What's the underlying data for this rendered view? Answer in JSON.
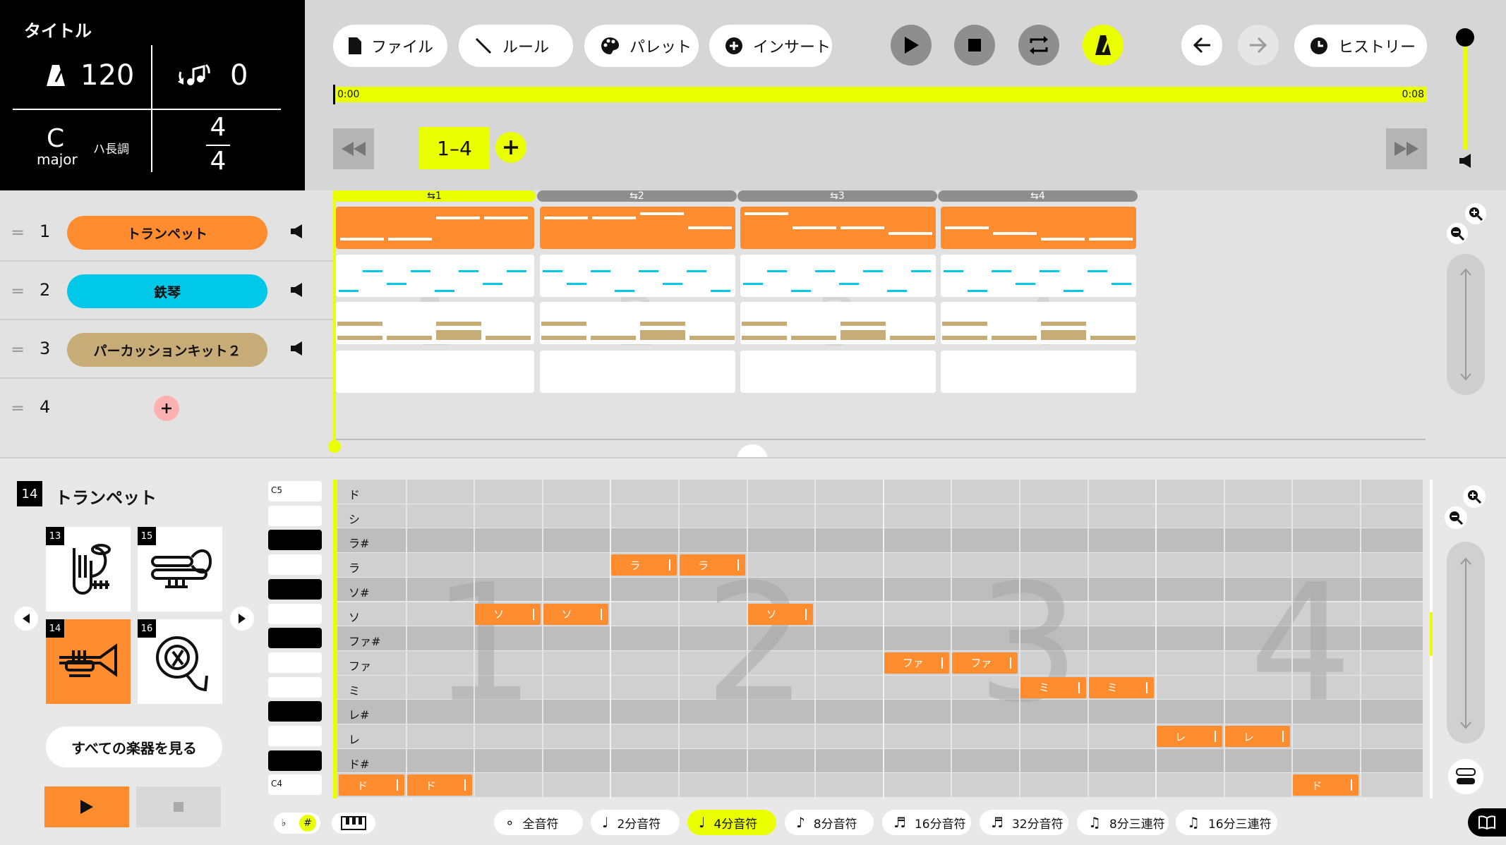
{
  "song": {
    "title": "タイトル",
    "tempo": "120",
    "transpose": "0",
    "key_note": "C",
    "key_mode": "major",
    "key_jp": "ハ長調",
    "ts_num": "4",
    "ts_den": "4"
  },
  "toolbar": {
    "file": "ファイル",
    "rule": "ルール",
    "palette": "パレット",
    "insert": "インサート",
    "history": "ヒストリー"
  },
  "timeline": {
    "start": "0:00",
    "end": "0:08"
  },
  "range": {
    "label": "1–4"
  },
  "measures": [
    "1",
    "2",
    "3",
    "4"
  ],
  "tracks": [
    {
      "num": "1",
      "name": "トランペット",
      "color": "#ff8c2e",
      "text": "#111"
    },
    {
      "num": "2",
      "name": "鉄琴",
      "color": "#00c8e8",
      "text": "#111"
    },
    {
      "num": "3",
      "name": "パーカッションキット２",
      "color": "#c8ac78",
      "text": "#111"
    },
    {
      "num": "4"
    }
  ],
  "editor": {
    "badge": "14",
    "instrument": "トランペット",
    "see_all": "すべての楽器を見る",
    "cards": [
      {
        "num": "13",
        "icon": "tuba-icon"
      },
      {
        "num": "15",
        "icon": "trombone-icon"
      },
      {
        "num": "14",
        "icon": "trumpet-icon"
      },
      {
        "num": "16",
        "icon": "horn-icon"
      }
    ]
  },
  "rows": [
    "ド",
    "シ",
    "ラ#",
    "ラ",
    "ソ#",
    "ソ",
    "ファ#",
    "ファ",
    "ミ",
    "レ#",
    "レ",
    "ド#",
    "ド"
  ],
  "octave_top": "C5",
  "octave_bottom": "C4",
  "notes": [
    {
      "label": "ド",
      "row": 12,
      "step": 0
    },
    {
      "label": "ド",
      "row": 12,
      "step": 1
    },
    {
      "label": "ソ",
      "row": 5,
      "step": 2
    },
    {
      "label": "ソ",
      "row": 5,
      "step": 3
    },
    {
      "label": "ラ",
      "row": 3,
      "step": 4
    },
    {
      "label": "ラ",
      "row": 3,
      "step": 5
    },
    {
      "label": "ソ",
      "row": 5,
      "step": 6
    },
    {
      "label": "ファ",
      "row": 7,
      "step": 8
    },
    {
      "label": "ファ",
      "row": 7,
      "step": 9
    },
    {
      "label": "ミ",
      "row": 8,
      "step": 10
    },
    {
      "label": "ミ",
      "row": 8,
      "step": 11
    },
    {
      "label": "レ",
      "row": 10,
      "step": 12
    },
    {
      "label": "レ",
      "row": 10,
      "step": 13
    },
    {
      "label": "ド",
      "row": 12,
      "step": 14
    }
  ],
  "durations": [
    "全音符",
    "2分音符",
    "4分音符",
    "8分音符",
    "16分音符",
    "32分音符",
    "8分三連符",
    "16分三連符"
  ],
  "selected_duration": "4分音符",
  "accidentals": {
    "flat": "♭",
    "sharp": "#"
  },
  "colors": {
    "accent": "#eaff00",
    "orange": "#ff8c2e",
    "cyan": "#00c8e8",
    "tan": "#c8ac78"
  }
}
